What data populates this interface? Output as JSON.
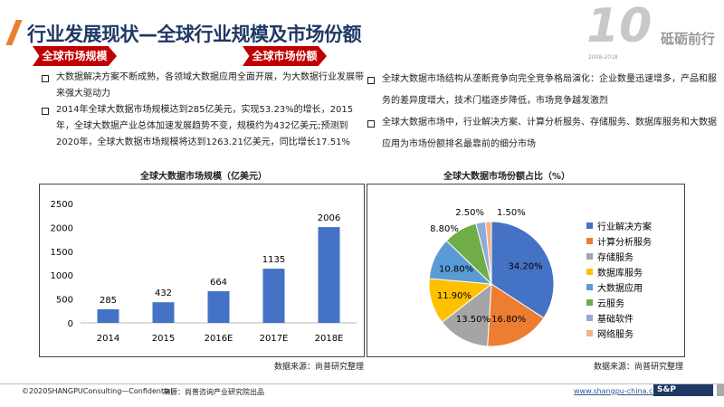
{
  "header": {
    "title": "行业发展现状—全球行业规模及市场份额",
    "brand": "砥砺前行",
    "brand_years": "2008-2018",
    "brand_mark": "10"
  },
  "left": {
    "banner": "全球市场规模",
    "bullets": [
      "大数据解决方案不断成熟，各领域大数据应用全面开展，为大数据行业发展带来强大驱动力",
      "2014年全球大数据市场规模达到285亿美元，实现53.23%的增长，2015年，全球大数据产业总体加速发展趋势不变，规模约为432亿美元;预测到2020年，全球大数据市场规模将达到1263.21亿美元，同比增长17.51%"
    ],
    "source": "数据来源：尚普研究整理"
  },
  "right": {
    "banner": "全球市场份额",
    "bullets": [
      "全球大数据市场结构从垄断竞争向完全竞争格局演化：企业数量迅速增多，产品和服务的差异度增大，技术门槛逐步降低，市场竞争越发激烈",
      "全球大数据市场中，行业解决方案、计算分析服务、存储服务、数据库服务和大数据应用为市场份额排名最靠前的细分市场"
    ],
    "source": "数据来源：尚普研究整理"
  },
  "chart_data": [
    {
      "type": "bar",
      "title": "全球大数据市场规模（亿美元）",
      "categories": [
        "2014",
        "2015",
        "2016E",
        "2017E",
        "2018E"
      ],
      "values": [
        285,
        432,
        664,
        1135,
        2006
      ],
      "ylim": [
        0,
        2500
      ],
      "yticks": [
        0,
        500,
        1000,
        1500,
        2000,
        2500
      ],
      "color": "#4472c4",
      "grid": false
    },
    {
      "type": "pie",
      "title": "全球大数据市场份额占比（%）",
      "labels": [
        "行业解决方案",
        "计算分析服务",
        "存储服务",
        "数据库服务",
        "大数据应用",
        "云服务",
        "基础软件",
        "网络服务"
      ],
      "values": [
        34.2,
        16.8,
        13.5,
        11.9,
        10.8,
        8.8,
        2.5,
        1.5
      ],
      "value_labels": [
        "34.20%",
        "16.80%",
        "13.50%",
        "11.90%",
        "10.80%",
        "8.80%",
        "2.50%",
        "1.50%"
      ],
      "colors": [
        "#4472c4",
        "#ed7d31",
        "#a5a5a5",
        "#ffc000",
        "#5b9bd5",
        "#70ad47",
        "#8faadc",
        "#f4b183"
      ],
      "legend": "right"
    }
  ],
  "footer": {
    "copyright": "©2020SHANGPUConsulting—Confidential",
    "source": "来源：尚普咨询产业研究院出品",
    "url": "www.shangpu-china.com",
    "logo": "S&P"
  }
}
